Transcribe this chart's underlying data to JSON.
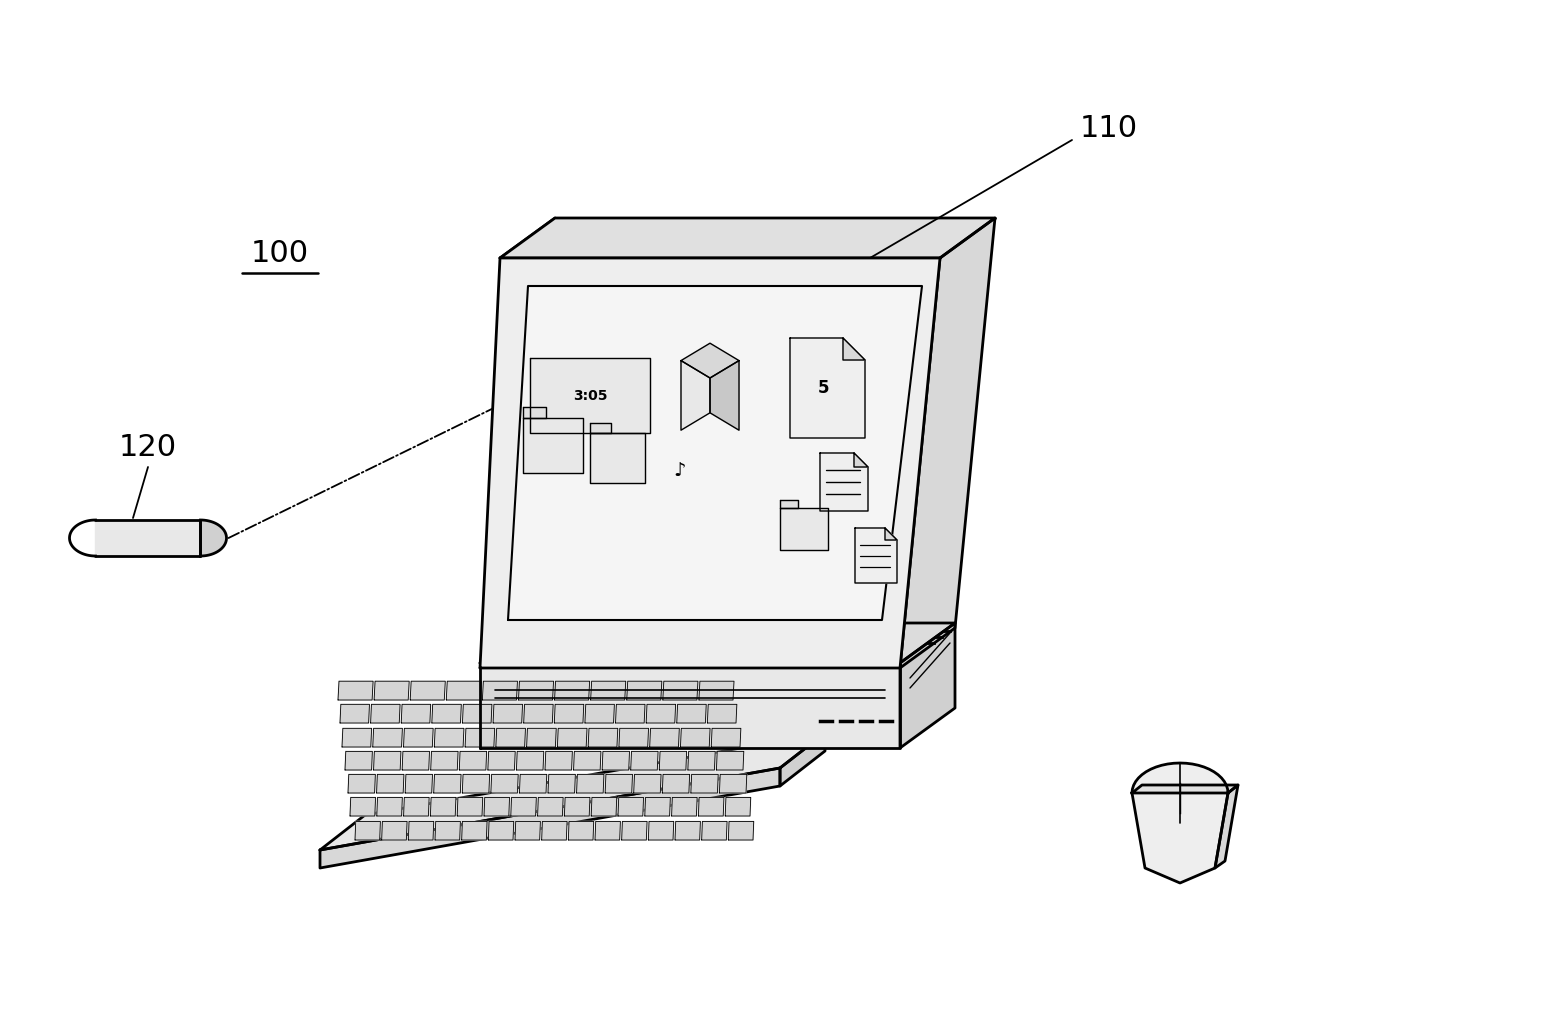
{
  "background_color": "#ffffff",
  "line_color": "#000000",
  "label_100": "100",
  "label_110": "110",
  "label_120": "120",
  "fig_width": 15.41,
  "fig_height": 10.18
}
